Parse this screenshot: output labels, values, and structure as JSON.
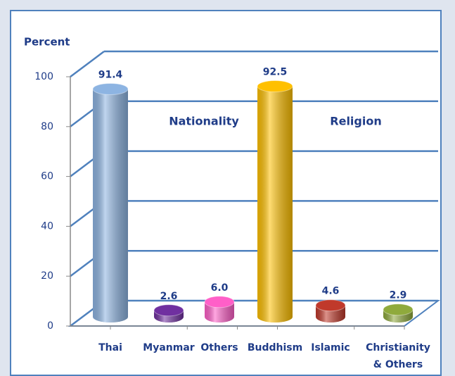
{
  "chart_data": {
    "type": "bar3d",
    "y_label": "Percent",
    "annotations": [
      "Nationality",
      "Religion"
    ],
    "categories": [
      "Thai",
      "Myanmar",
      "Others",
      "Buddhism",
      "Islamic",
      "Christianity\n& Others"
    ],
    "values": [
      91.4,
      2.6,
      6.0,
      92.5,
      4.6,
      2.9
    ],
    "value_labels": [
      "91.4",
      "2.6",
      "6.0",
      "92.5",
      "4.6",
      "2.9"
    ],
    "colors": [
      "#8db4e2",
      "#7030a0",
      "#ff5fc8",
      "#ffc000",
      "#c0392b",
      "#8faa3c"
    ],
    "ylim": [
      0,
      100
    ],
    "yticks": [
      0,
      20,
      40,
      60,
      80,
      100
    ],
    "grid": true
  }
}
